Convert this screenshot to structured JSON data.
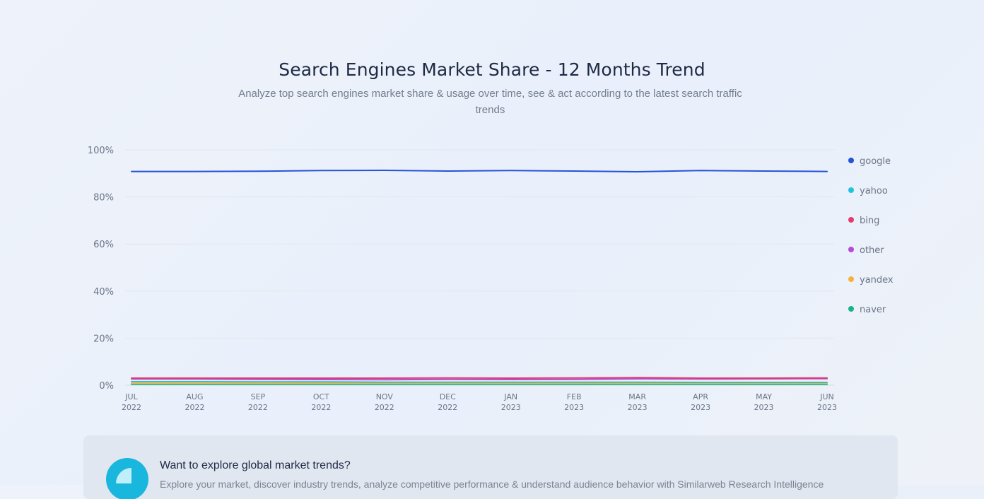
{
  "header": {
    "title": "Search Engines Market Share - 12 Months Trend",
    "subtitle": "Analyze top search engines market share & usage over time, see & act according to the latest search traffic trends"
  },
  "chart_data": {
    "type": "line",
    "x": [
      [
        "JUL",
        "2022"
      ],
      [
        "AUG",
        "2022"
      ],
      [
        "SEP",
        "2022"
      ],
      [
        "OCT",
        "2022"
      ],
      [
        "NOV",
        "2022"
      ],
      [
        "DEC",
        "2022"
      ],
      [
        "JAN",
        "2023"
      ],
      [
        "FEB",
        "2023"
      ],
      [
        "MAR",
        "2023"
      ],
      [
        "APR",
        "2023"
      ],
      [
        "MAY",
        "2023"
      ],
      [
        "JUN",
        "2023"
      ]
    ],
    "ylim": [
      0,
      100
    ],
    "yticks": [
      0,
      20,
      40,
      60,
      80,
      100
    ],
    "ytick_labels": [
      "0%",
      "20%",
      "40%",
      "60%",
      "80%",
      "100%"
    ],
    "grid": true,
    "legend_position": "right",
    "series": [
      {
        "name": "google",
        "color": "#2653d6",
        "values": [
          90.8,
          90.8,
          90.9,
          91.2,
          91.3,
          91.0,
          91.2,
          91.0,
          90.7,
          91.2,
          91.0,
          90.8
        ]
      },
      {
        "name": "yahoo",
        "color": "#1fc3dd",
        "values": [
          1.5,
          1.5,
          1.4,
          1.4,
          1.3,
          1.3,
          1.3,
          1.3,
          1.3,
          1.2,
          1.2,
          1.2
        ]
      },
      {
        "name": "bing",
        "color": "#e23b6c",
        "values": [
          3.0,
          3.0,
          3.0,
          3.0,
          3.0,
          3.1,
          3.0,
          3.1,
          3.2,
          3.0,
          3.0,
          3.1
        ]
      },
      {
        "name": "other",
        "color": "#b54bd9",
        "values": [
          2.6,
          2.6,
          2.5,
          2.4,
          2.3,
          2.5,
          2.4,
          2.5,
          2.7,
          2.6,
          2.7,
          2.8
        ]
      },
      {
        "name": "yandex",
        "color": "#f4b23b",
        "values": [
          0.8,
          0.8,
          0.8,
          0.8,
          0.8,
          0.8,
          0.8,
          0.8,
          0.8,
          0.8,
          0.8,
          0.8
        ]
      },
      {
        "name": "naver",
        "color": "#17b388",
        "values": [
          0.4,
          0.4,
          0.4,
          0.4,
          0.4,
          0.4,
          0.4,
          0.4,
          0.4,
          0.4,
          0.4,
          0.4
        ]
      }
    ]
  },
  "promo": {
    "title": "Want to explore global market trends?",
    "text": "Explore your market, discover industry trends, analyze competitive performance & understand audience behavior with Similarweb Research Intelligence"
  }
}
